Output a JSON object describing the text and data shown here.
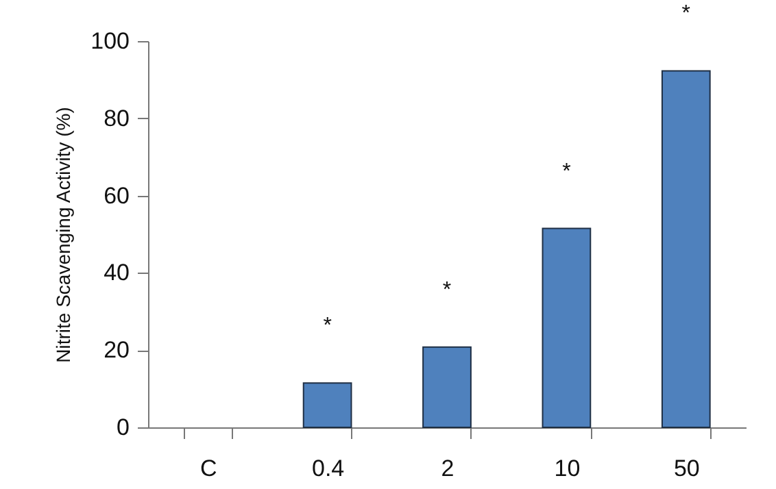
{
  "chart_data": {
    "type": "bar",
    "ylabel": "Nitrite Scavenging Activity (%)",
    "categories": [
      "C",
      "0.4",
      "2",
      "10",
      "50"
    ],
    "values": [
      null,
      11.5,
      20.8,
      51.5,
      92.3
    ],
    "color": "#4f81bd",
    "ylim": [
      0,
      100
    ],
    "yticks": [
      0,
      20,
      40,
      60,
      80,
      100
    ],
    "grid": false,
    "annotations": [
      {
        "text": "*",
        "x": "0.4",
        "y": 11.5
      },
      {
        "text": "*",
        "x": "2",
        "y": 20.8
      },
      {
        "text": "*",
        "x": "10",
        "y": 51.5
      },
      {
        "text": "*",
        "x": "50",
        "y": 92.3
      }
    ]
  }
}
